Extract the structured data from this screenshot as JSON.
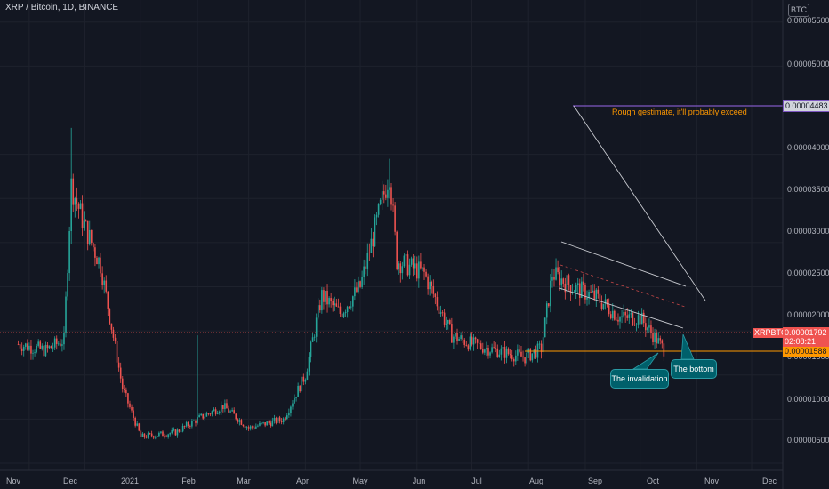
{
  "header": {
    "title": "XRP / Bitcoin, 1D, BINANCE",
    "currency": "BTC"
  },
  "y_axis_labels": [
    "0.00005500",
    "0.00005000",
    "0.00004000",
    "0.00003500",
    "0.00003000",
    "0.00002500",
    "0.00002000",
    "0.00001500",
    "0.00001000",
    "0.00000500"
  ],
  "x_axis_labels": [
    "Nov",
    "Dec",
    "2021",
    "Feb",
    "Mar",
    "Apr",
    "May",
    "Jun",
    "Jul",
    "Aug",
    "Sep",
    "Oct",
    "Nov",
    "Dec"
  ],
  "price_tags": {
    "symbol": "XRPBTC",
    "last_price": "0.00001792",
    "countdown": "02:08:21",
    "invalidation_price": "0.00001588",
    "target_price": "0.00004483"
  },
  "annotations": {
    "target_note": "Rough gestimate, it'll probably exceed",
    "invalidation_callout": "The invalidation",
    "bottom_callout": "The bottom"
  },
  "colors": {
    "background": "#131722",
    "up": "#26a69a",
    "down": "#ef5350",
    "target_line": "#7e57c2",
    "invalidation_line": "#ff9800",
    "callout": "#00606b"
  },
  "chart_data": {
    "type": "candlestick",
    "title": "XRP / Bitcoin, 1D, BINANCE",
    "unit": "BTC",
    "ylim": [
      4.2e-06,
      5.75e-05
    ],
    "grid": true,
    "series": [
      {
        "x": "2020-10-26",
        "close": 1.85e-05
      },
      {
        "x": "2020-11-10",
        "close": 1.78e-05
      },
      {
        "x": "2020-11-20",
        "close": 1.9e-05
      },
      {
        "x": "2020-11-24",
        "close": 3.65e-05,
        "high": 4.3e-05
      },
      {
        "x": "2020-12-01",
        "close": 3.2e-05
      },
      {
        "x": "2020-12-10",
        "close": 2.75e-05
      },
      {
        "x": "2020-12-22",
        "close": 1.35e-05
      },
      {
        "x": "2021-01-01",
        "close": 8e-06
      },
      {
        "x": "2021-01-20",
        "close": 8.5e-06
      },
      {
        "x": "2021-02-01",
        "close": 1e-05,
        "high": 1.95e-05
      },
      {
        "x": "2021-02-15",
        "close": 1.15e-05
      },
      {
        "x": "2021-03-01",
        "close": 9e-06
      },
      {
        "x": "2021-03-20",
        "close": 1e-05
      },
      {
        "x": "2021-04-01",
        "close": 1.5e-05
      },
      {
        "x": "2021-04-10",
        "close": 2.4e-05
      },
      {
        "x": "2021-04-20",
        "close": 2.2e-05
      },
      {
        "x": "2021-05-01",
        "close": 2.5e-05
      },
      {
        "x": "2021-05-17",
        "close": 3.8e-05,
        "high": 3.95e-05
      },
      {
        "x": "2021-05-21",
        "close": 2.8e-05
      },
      {
        "x": "2021-06-05",
        "close": 2.65e-05
      },
      {
        "x": "2021-06-20",
        "close": 1.95e-05
      },
      {
        "x": "2021-07-01",
        "close": 1.85e-05
      },
      {
        "x": "2021-07-20",
        "close": 1.75e-05
      },
      {
        "x": "2021-07-30",
        "close": 1.7e-05
      },
      {
        "x": "2021-08-08",
        "close": 1.8e-05
      },
      {
        "x": "2021-08-14",
        "close": 2.65e-05
      },
      {
        "x": "2021-08-25",
        "close": 2.5e-05
      },
      {
        "x": "2021-09-07",
        "close": 2.38e-05
      },
      {
        "x": "2021-09-20",
        "close": 2.15e-05
      },
      {
        "x": "2021-10-01",
        "close": 2.15e-05
      },
      {
        "x": "2021-10-14",
        "close": 1.79e-05
      }
    ],
    "horizontal_lines": [
      {
        "label": "target",
        "y": 4.483e-05
      },
      {
        "label": "invalidation",
        "y": 1.588e-05
      }
    ],
    "last_price": 1.792e-05
  }
}
